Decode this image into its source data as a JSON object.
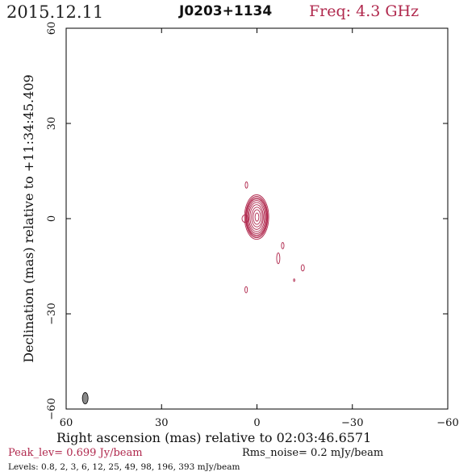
{
  "header": {
    "date": "2015.12.11",
    "source": "J0203+1134",
    "freq": "Freq: 4.3 GHz"
  },
  "footer": {
    "peak": "Peak_lev=  0.699 Jy/beam",
    "rms": "Rms_noise=  0.2 mJy/beam",
    "levels": "Levels: 0.8,   2,   3,   6,  12,  25,  49,  98, 196, 393 mJy/beam"
  },
  "colors": {
    "contour": "#b0284d",
    "beam_fill": "#888888",
    "axis": "#000000"
  },
  "chart_data": {
    "type": "contour",
    "title": "J0203+1134",
    "xlabel": "Right ascension (mas) relative to 02:03:46.6571",
    "ylabel": "Declination (mas) relative to +11:34:45.409",
    "xlim": [
      60,
      -60
    ],
    "ylim": [
      -60,
      60
    ],
    "x_ticks": [
      60,
      30,
      0,
      -30,
      -60
    ],
    "y_ticks": [
      -60,
      -30,
      0,
      30,
      60
    ],
    "x_tick_labels": [
      "60",
      "30",
      "0",
      "−30",
      "−60"
    ],
    "y_tick_labels": [
      "−60",
      "−30",
      "0",
      "30",
      "60"
    ],
    "levels_mJy_per_beam": [
      0.8,
      2,
      3,
      6,
      12,
      25,
      49,
      98,
      196,
      393
    ],
    "peak_Jy_per_beam": 0.699,
    "rms_noise_mJy_per_beam": 0.2,
    "core": {
      "x": 0,
      "y": 0.5,
      "contours": [
        {
          "level_mJy": 0.8,
          "x": 0.1,
          "y": 0.5,
          "semi_x": 3.8,
          "semi_y": 7.0
        },
        {
          "level_mJy": 2,
          "x": 0.1,
          "y": 0.5,
          "semi_x": 3.5,
          "semi_y": 6.5
        },
        {
          "level_mJy": 3,
          "x": 0.1,
          "y": 0.5,
          "semi_x": 3.3,
          "semi_y": 6.1
        },
        {
          "level_mJy": 6,
          "x": 0.1,
          "y": 0.5,
          "semi_x": 3.1,
          "semi_y": 5.7
        },
        {
          "level_mJy": 12,
          "x": 0.1,
          "y": 0.5,
          "semi_x": 2.8,
          "semi_y": 5.2
        },
        {
          "level_mJy": 25,
          "x": 0.1,
          "y": 0.5,
          "semi_x": 2.5,
          "semi_y": 4.6
        },
        {
          "level_mJy": 49,
          "x": 0.1,
          "y": 0.5,
          "semi_x": 2.1,
          "semi_y": 3.9
        },
        {
          "level_mJy": 98,
          "x": 0.0,
          "y": 0.5,
          "semi_x": 1.7,
          "semi_y": 3.1
        },
        {
          "level_mJy": 196,
          "x": 0.0,
          "y": 0.5,
          "semi_x": 1.2,
          "semi_y": 2.3
        },
        {
          "level_mJy": 393,
          "x": 0.0,
          "y": 0.5,
          "semi_x": 0.6,
          "semi_y": 1.3
        }
      ],
      "side_blob": {
        "x": 3.7,
        "y": 0.0,
        "semi_x": 1.0,
        "semi_y": 1.2
      }
    },
    "weak_features": [
      {
        "x": 3.3,
        "y": 10.6,
        "semi_x": 0.4,
        "semi_y": 1.0
      },
      {
        "x": -8.1,
        "y": -8.5,
        "semi_x": 0.4,
        "semi_y": 1.0
      },
      {
        "x": -6.7,
        "y": -12.5,
        "semi_x": 0.5,
        "semi_y": 1.7
      },
      {
        "x": -14.4,
        "y": -15.5,
        "semi_x": 0.5,
        "semi_y": 1.0
      },
      {
        "x": -11.7,
        "y": -19.4,
        "semi_x": 0.2,
        "semi_y": 0.4
      },
      {
        "x": 3.4,
        "y": -22.4,
        "semi_x": 0.4,
        "semi_y": 1.0
      }
    ],
    "beam": {
      "x": 54.0,
      "y": -56.6,
      "semi_x": 0.9,
      "semi_y": 1.8
    },
    "grid": false,
    "legend": "none"
  }
}
